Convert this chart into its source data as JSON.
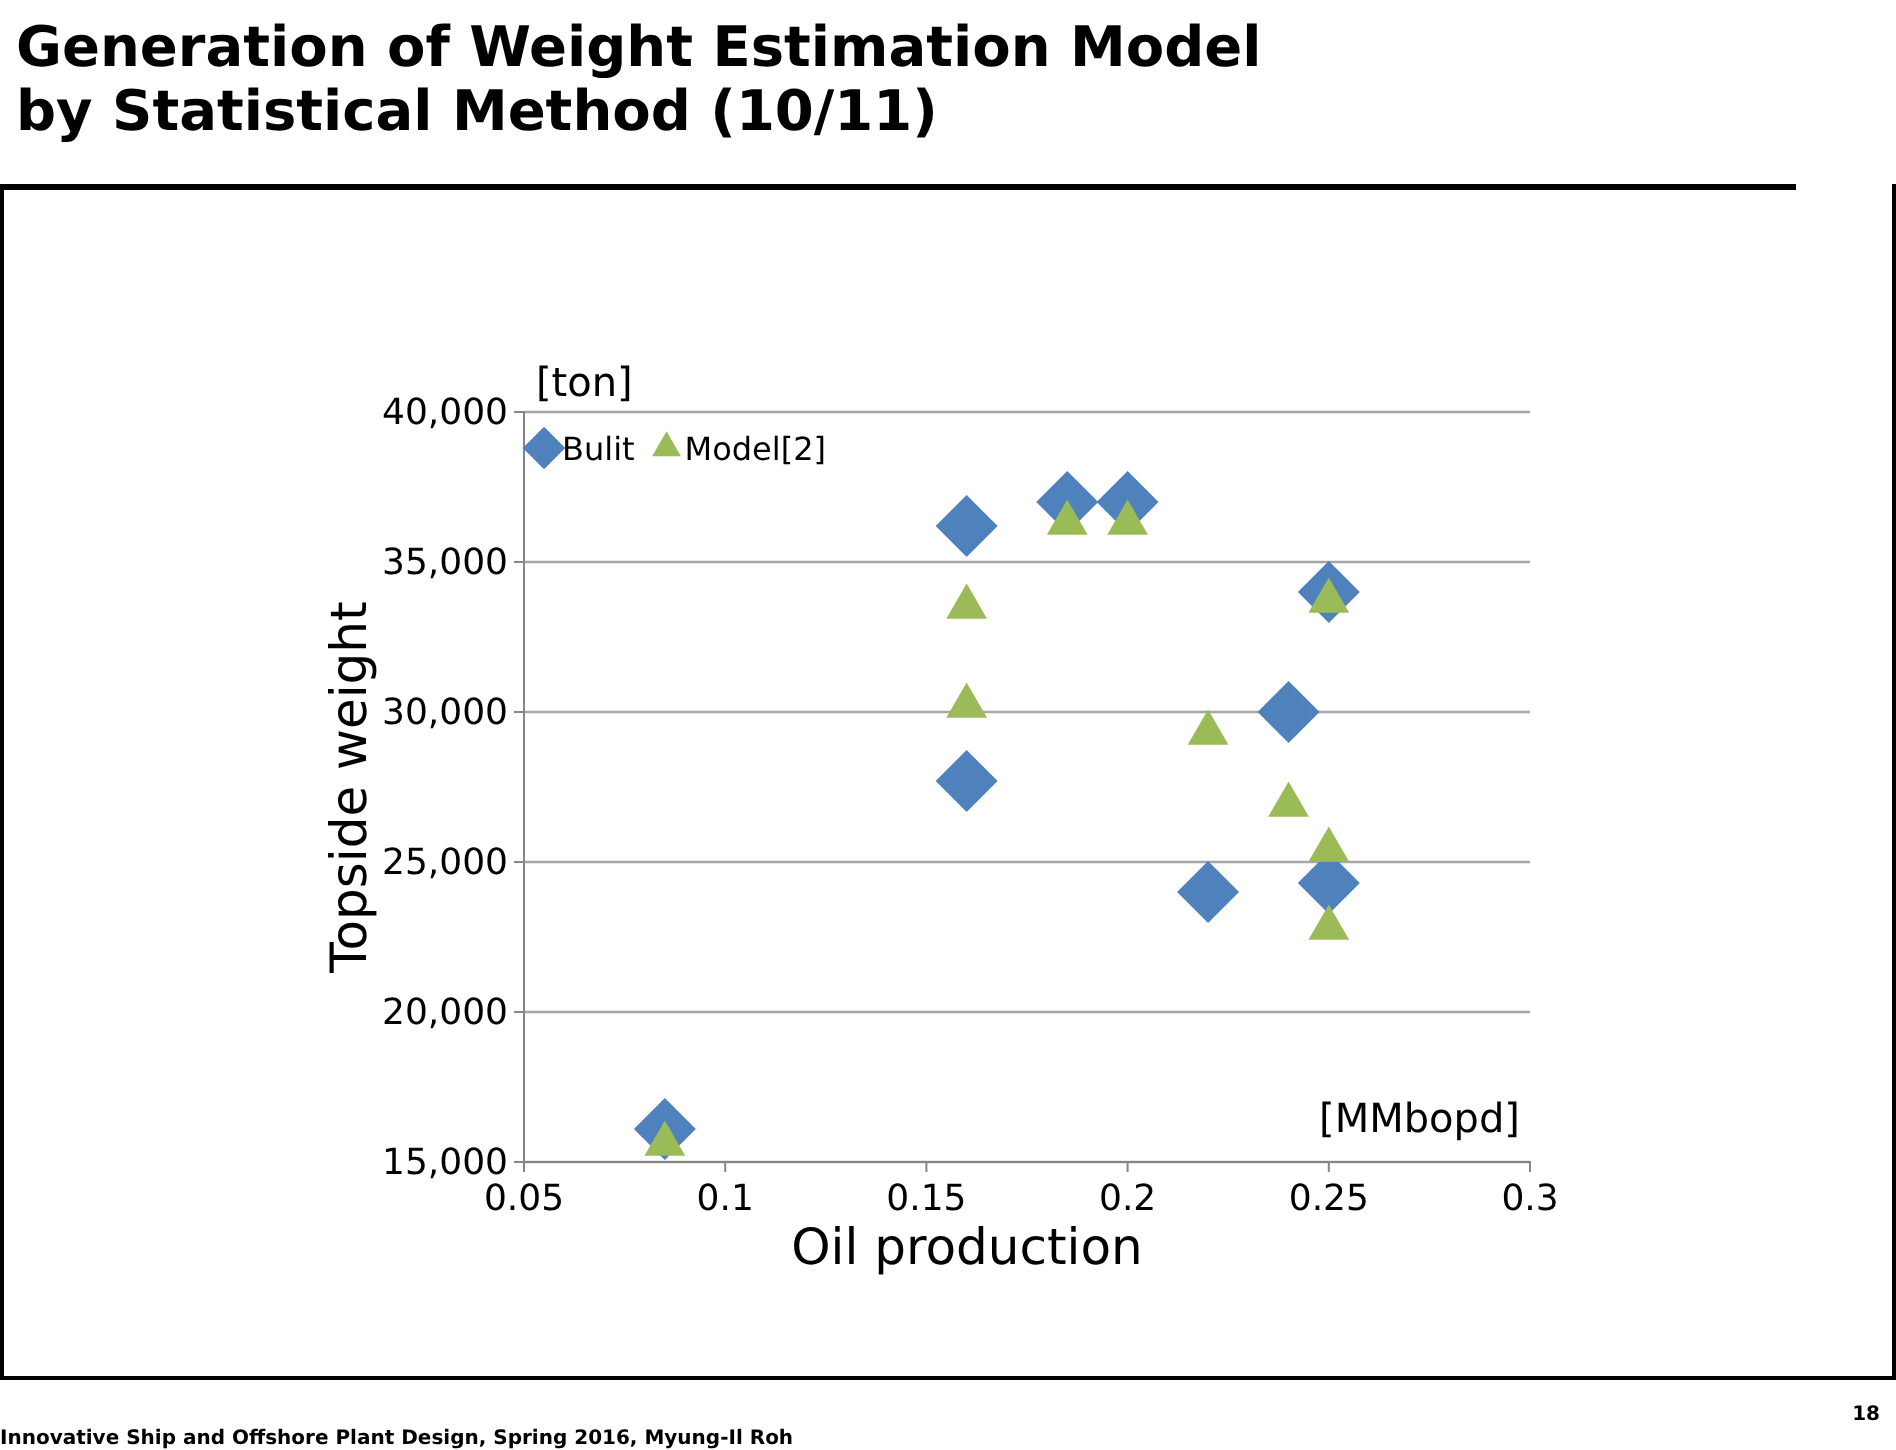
{
  "chart_data": {
    "type": "scatter",
    "title": "Generation of Weight Estimation Model by Statistical Method (10/11)",
    "xlabel": "Oil production",
    "ylabel": "Topside weight",
    "annotations": [
      "[ton]",
      "[MMbopd]",
      "Innovative Ship and Offshore Plant Design, Spring 2016, Myung-Il Roh",
      "18"
    ],
    "series": [
      {
        "name": "Bulit",
        "color": "#4f81bd",
        "marker": "diamond",
        "x": [
          0.085,
          0.16,
          0.16,
          0.185,
          0.2,
          0.22,
          0.24,
          0.25,
          0.25
        ],
        "values": [
          16100,
          36200,
          27700,
          37000,
          37000,
          24000,
          30000,
          34000,
          24300
        ]
      },
      {
        "name": "Model[2]",
        "color": "#9bbb59",
        "marker": "triangle",
        "x": [
          0.085,
          0.16,
          0.16,
          0.185,
          0.2,
          0.22,
          0.24,
          0.25,
          0.25,
          0.25
        ],
        "values": [
          15600,
          33500,
          30200,
          36300,
          36300,
          29300,
          26900,
          33700,
          25400,
          22800
        ]
      }
    ],
    "xlim": [
      0.05,
      0.3
    ],
    "xticks": [
      0.05,
      0.1,
      0.15,
      0.2,
      0.25,
      0.3
    ],
    "ylim": [
      15000,
      40000
    ],
    "yticks": [
      {
        "value": 15000,
        "label": "15,000"
      },
      {
        "value": 20000,
        "label": "20,000"
      },
      {
        "value": 25000,
        "label": "25,000"
      },
      {
        "value": 30000,
        "label": "30,000"
      },
      {
        "value": 35000,
        "label": "35,000"
      },
      {
        "value": 40000,
        "label": "40,000"
      }
    ],
    "grid": "y",
    "legend": "top left"
  }
}
